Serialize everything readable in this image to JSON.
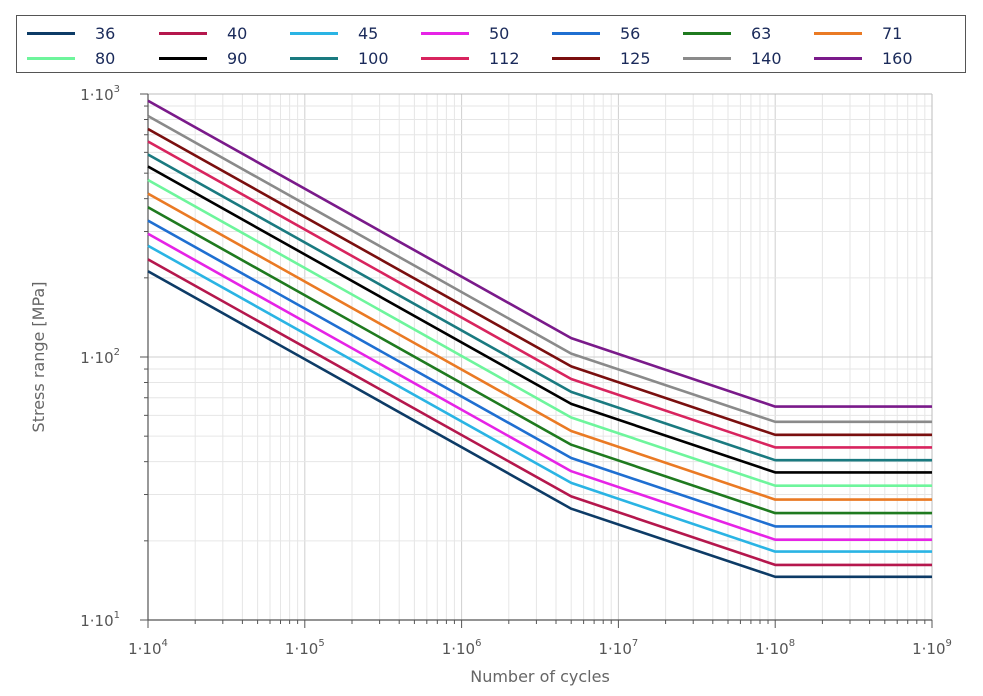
{
  "chart_data": {
    "type": "line",
    "title": "",
    "xlabel": "Number of cycles",
    "ylabel": "Stress range [MPa]",
    "xscale": "log",
    "yscale": "log",
    "xlim": [
      10000,
      1000000000
    ],
    "ylim": [
      10,
      1000
    ],
    "grid": true,
    "legend_position": "top",
    "x_ticks": [
      {
        "base": "1·10",
        "exp": "4"
      },
      {
        "base": "1·10",
        "exp": "5"
      },
      {
        "base": "1·10",
        "exp": "6"
      },
      {
        "base": "1·10",
        "exp": "7"
      },
      {
        "base": "1·10",
        "exp": "8"
      },
      {
        "base": "1·10",
        "exp": "9"
      }
    ],
    "y_ticks": [
      {
        "base": "1·10",
        "exp": "1"
      },
      {
        "base": "1·10",
        "exp": "2"
      },
      {
        "base": "1·10",
        "exp": "3"
      }
    ],
    "x": [
      10000,
      5000000,
      100000000,
      1000000000
    ],
    "series": [
      {
        "name": "36",
        "color": "#0d3b66",
        "values": [
          212,
          26.5,
          14.6,
          14.6
        ]
      },
      {
        "name": "40",
        "color": "#b5174d",
        "values": [
          235,
          29.5,
          16.2,
          16.2
        ]
      },
      {
        "name": "45",
        "color": "#2ab4e4",
        "values": [
          265,
          33.2,
          18.2,
          18.2
        ]
      },
      {
        "name": "50",
        "color": "#e623e6",
        "values": [
          294,
          36.8,
          20.2,
          20.2
        ]
      },
      {
        "name": "56",
        "color": "#1f6fd1",
        "values": [
          330,
          41.3,
          22.7,
          22.7
        ]
      },
      {
        "name": "63",
        "color": "#1f7a1f",
        "values": [
          371,
          46.4,
          25.5,
          25.5
        ]
      },
      {
        "name": "71",
        "color": "#ea7a24",
        "values": [
          418,
          52.3,
          28.7,
          28.7
        ]
      },
      {
        "name": "80",
        "color": "#6ef59c",
        "values": [
          471,
          58.9,
          32.4,
          32.4
        ]
      },
      {
        "name": "90",
        "color": "#000000",
        "values": [
          530,
          66.3,
          36.4,
          36.4
        ]
      },
      {
        "name": "100",
        "color": "#1a7a80",
        "values": [
          589,
          73.7,
          40.5,
          40.5
        ]
      },
      {
        "name": "112",
        "color": "#d8245e",
        "values": [
          660,
          82.5,
          45.3,
          45.3
        ]
      },
      {
        "name": "125",
        "color": "#7a0f0f",
        "values": [
          736,
          92.1,
          50.6,
          50.6
        ]
      },
      {
        "name": "140",
        "color": "#8a8a8a",
        "values": [
          825,
          103,
          56.7,
          56.7
        ]
      },
      {
        "name": "160",
        "color": "#7a1a8a",
        "values": [
          942,
          118,
          64.8,
          64.8
        ]
      }
    ]
  }
}
